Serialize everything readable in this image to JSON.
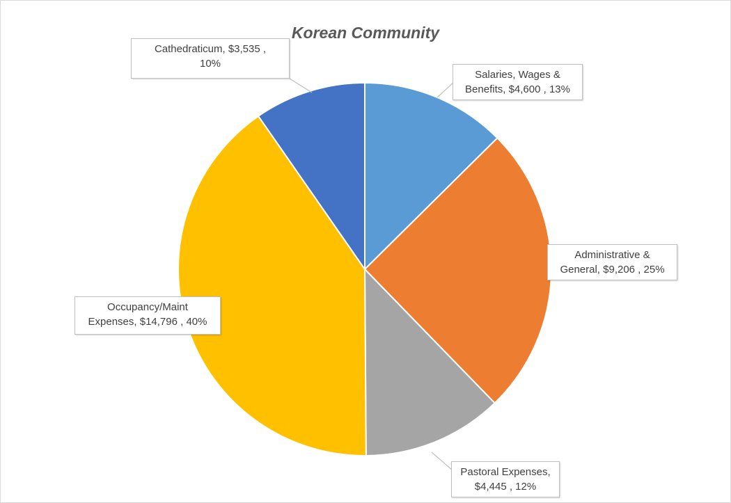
{
  "chart_data": {
    "type": "pie",
    "title": "Korean Community",
    "legend": "none",
    "slices": [
      {
        "name": "Salaries, Wages & Benefits",
        "value": 4600,
        "value_text": "$4,600",
        "percent_text": "13%",
        "color": "#5b9bd5",
        "label_lines": [
          "Salaries, Wages &",
          "Benefits,  $4,600 , 13%"
        ]
      },
      {
        "name": "Administrative & General",
        "value": 9206,
        "value_text": "$9,206",
        "percent_text": "25%",
        "color": "#ed7d31",
        "label_lines": [
          "Administrative &",
          "General,  $9,206 , 25%"
        ]
      },
      {
        "name": "Pastoral Expenses",
        "value": 4445,
        "value_text": "$4,445",
        "percent_text": "12%",
        "color": "#a5a5a5",
        "label_lines": [
          "Pastoral Expenses,",
          "$4,445 , 12%"
        ]
      },
      {
        "name": "Occupancy/Maint Expenses",
        "value": 14796,
        "value_text": "$14,796",
        "percent_text": "40%",
        "color": "#ffc000",
        "label_lines": [
          "Occupancy/Maint",
          "Expenses,  $14,796 , 40%"
        ]
      },
      {
        "name": "Cathedraticum",
        "value": 3535,
        "value_text": "$3,535",
        "percent_text": "10%",
        "color": "#4472c4",
        "label_lines": [
          "Cathedraticum,  $3,535 ,",
          "10%"
        ]
      }
    ]
  }
}
